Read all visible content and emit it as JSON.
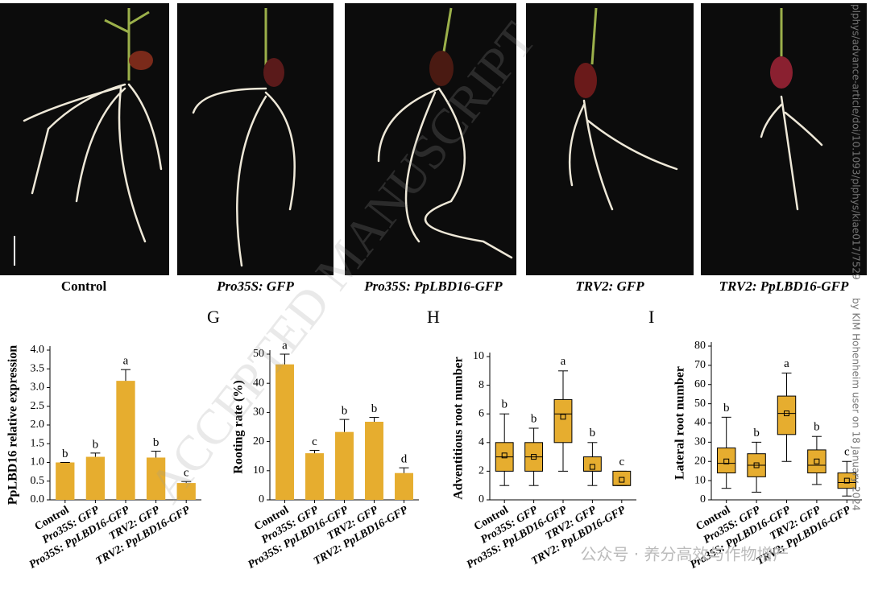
{
  "photos": [
    {
      "caption": "Control"
    },
    {
      "caption": "Pro35S: GFP"
    },
    {
      "caption": "Pro35S: PpLBD16-GFP"
    },
    {
      "caption": "TRV2: GFP"
    },
    {
      "caption": "TRV2: PpLBD16-GFP"
    }
  ],
  "watermarks": {
    "main": "ACCEPTED MANUSCRIPT",
    "side": "plphys/advance-article/doi/10.1093/plphys/kiae017/7529",
    "side2": "by KIM Hohenheim user on 18 January 2024",
    "wechat": "公众号 · 养分高效与作物增产"
  },
  "chart_data": [
    {
      "type": "bar",
      "ylabel": "PpLBD16 relative expression",
      "categories": [
        "Control",
        "Pro35S: GFP",
        "Pro35S: PpLBD16-GFP",
        "TRV2: GFP",
        "TRV2: PpLBD16-GFP"
      ],
      "values": [
        1.0,
        1.15,
        3.18,
        1.13,
        0.45
      ],
      "errors": [
        0.0,
        0.1,
        0.3,
        0.17,
        0.04
      ],
      "annotations": [
        "b",
        "b",
        "a",
        "b",
        "c"
      ],
      "color": "#e6ad2f",
      "ylim": [
        0,
        4
      ],
      "yticks": [
        {
          "value": 0,
          "label": "0.0"
        },
        0.5,
        {
          "value": 1,
          "label": "1.0"
        },
        1.5,
        {
          "value": 2,
          "label": "2.0"
        },
        2.5,
        {
          "value": 3,
          "label": "3.0"
        },
        3.5,
        {
          "value": 4,
          "label": "4.0"
        }
      ]
    },
    {
      "type": "bar",
      "label": "G",
      "ylabel": "Rooting rate (%)",
      "categories": [
        "Control",
        "Pro35S: GFP",
        "Pro35S: PpLBD16-GFP",
        "TRV2: GFP",
        "TRV2: PpLBD16-GFP"
      ],
      "values": [
        46.5,
        16,
        23.3,
        26.8,
        9.2
      ],
      "errors": [
        3.5,
        1,
        4.3,
        1.5,
        1.8
      ],
      "annotations": [
        "a",
        "c",
        "b",
        "b",
        "d"
      ],
      "color": "#e6ad2f",
      "ylim": [
        0,
        50
      ],
      "yticks": [
        0,
        10,
        20,
        30,
        40,
        50
      ]
    },
    {
      "type": "box",
      "label": "H",
      "ylabel": "Adventitious root number",
      "categories": [
        "Control",
        "Pro35S: GFP",
        "Pro35S: PpLBD16-GFP",
        "TRV2: GFP",
        "TRV2: PpLBD16-GFP"
      ],
      "min": [
        1,
        1,
        2,
        1,
        1
      ],
      "q1": [
        2,
        2,
        4,
        2,
        1
      ],
      "median": [
        3,
        3,
        6,
        2,
        1
      ],
      "q3": [
        4,
        4,
        7,
        3,
        2
      ],
      "max": [
        6,
        5,
        9,
        4,
        2
      ],
      "mean": [
        3.1,
        3.0,
        5.8,
        2.3,
        1.4
      ],
      "annotations": [
        "b",
        "b",
        "a",
        "b",
        "c"
      ],
      "color": "#e6ad2f",
      "ylim": [
        0,
        10
      ],
      "yticks": [
        0,
        2,
        4,
        6,
        8,
        10
      ]
    },
    {
      "type": "box",
      "label": "I",
      "ylabel": "Lateral root number",
      "categories": [
        "Control",
        "Pro35S: GFP",
        "Pro35S: PpLBD16-GFP",
        "TRV2: GFP",
        "TRV2: PpLBD16-GFP"
      ],
      "min": [
        6,
        4,
        20,
        8,
        2
      ],
      "q1": [
        14,
        12,
        34,
        14,
        6
      ],
      "median": [
        19,
        18,
        45,
        18,
        9
      ],
      "q3": [
        27,
        24,
        54,
        26,
        14
      ],
      "max": [
        43,
        30,
        66,
        33,
        20
      ],
      "mean": [
        20,
        18,
        45,
        20,
        10
      ],
      "annotations": [
        "b",
        "b",
        "a",
        "b",
        "c"
      ],
      "color": "#e6ad2f",
      "ylim": [
        0,
        80
      ],
      "yticks": [
        0,
        10,
        20,
        30,
        40,
        50,
        60,
        70,
        80
      ]
    }
  ]
}
